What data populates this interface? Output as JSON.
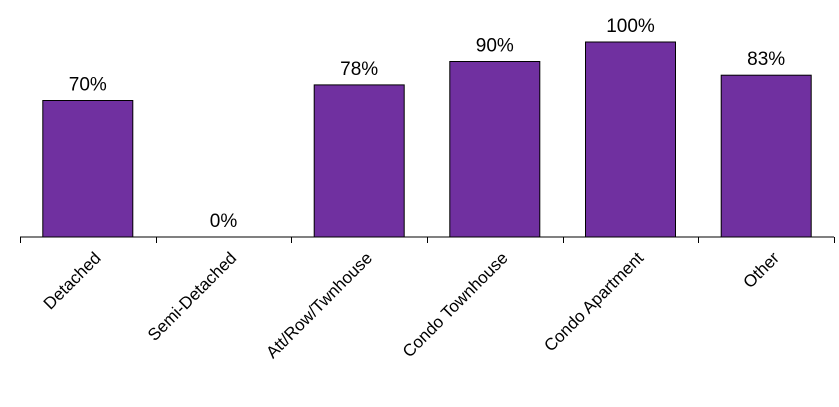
{
  "chart_data": {
    "type": "bar",
    "title": "",
    "xlabel": "",
    "ylabel": "",
    "categories": [
      "Detached",
      "Semi-Detached",
      "Att/Row/Twnhouse",
      "Condo Townhouse",
      "Condo Apartment",
      "Other"
    ],
    "values": [
      70,
      0,
      78,
      90,
      100,
      83
    ],
    "value_labels": [
      "70%",
      "0%",
      "78%",
      "90%",
      "100%",
      "83%"
    ],
    "ylim": [
      0,
      100
    ],
    "grid": false,
    "legend": "none",
    "bar_color": "#7030a0"
  }
}
